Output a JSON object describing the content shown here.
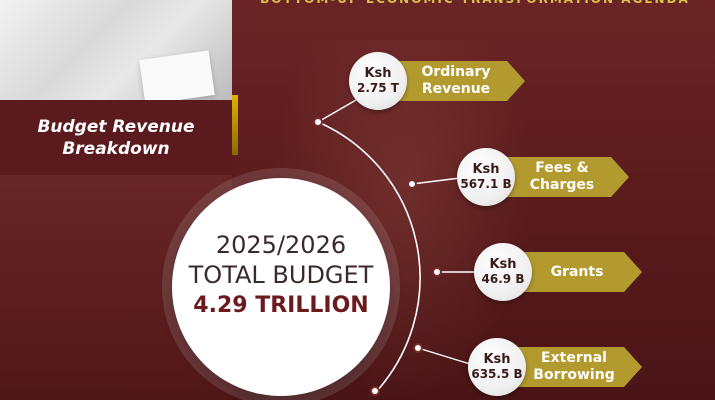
{
  "header": {
    "banner": "BOTTOM-UP ECONOMIC TRANSFORMATION AGENDA"
  },
  "section": {
    "title_line1": "Budget Revenue",
    "title_line2": "Breakdown"
  },
  "total": {
    "year": "2025/2026",
    "label": "TOTAL BUDGET",
    "amount": "4.29 TRILLION"
  },
  "items": [
    {
      "currency": "Ksh",
      "amount": "2.75 T",
      "label_line1": "Ordinary",
      "label_line2": "Revenue"
    },
    {
      "currency": "Ksh",
      "amount": "567.1 B",
      "label_line1": "Fees &",
      "label_line2": "Charges"
    },
    {
      "currency": "Ksh",
      "amount": "46.9 B",
      "label_line1": "Grants",
      "label_line2": ""
    },
    {
      "currency": "Ksh",
      "amount": "635.5 B",
      "label_line1": "External",
      "label_line2": "Borrowing"
    }
  ],
  "colors": {
    "maroon": "#5b1b1e",
    "gold": "#b39a2f",
    "white": "#ffffff"
  }
}
